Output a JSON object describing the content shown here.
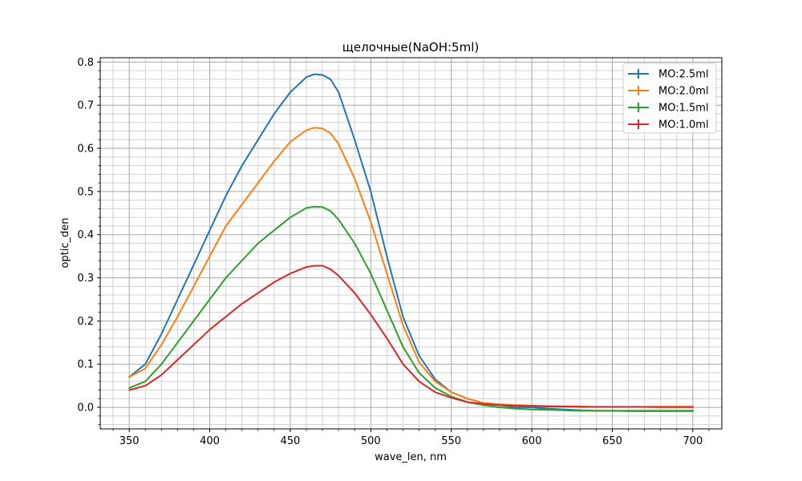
{
  "chart_data": {
    "type": "line",
    "title": "щелочные(NaOH:5ml)",
    "xlabel": "wave_len, nm",
    "ylabel": "optic_den",
    "xlim": [
      332,
      718
    ],
    "ylim": [
      -0.05,
      0.81
    ],
    "x_ticks": [
      350,
      400,
      450,
      500,
      550,
      600,
      650,
      700
    ],
    "x_tick_labels": [
      "350",
      "400",
      "450",
      "500",
      "550",
      "600",
      "650",
      "700"
    ],
    "y_ticks": [
      0.0,
      0.1,
      0.2,
      0.3,
      0.4,
      0.5,
      0.6,
      0.7,
      0.8
    ],
    "y_tick_labels": [
      "0.0",
      "0.1",
      "0.2",
      "0.3",
      "0.4",
      "0.5",
      "0.6",
      "0.7",
      "0.8"
    ],
    "grid": true,
    "minor_grid": true,
    "legend_position": "top-right",
    "x": [
      350,
      360,
      370,
      380,
      390,
      400,
      410,
      420,
      430,
      440,
      450,
      460,
      465,
      470,
      475,
      480,
      490,
      500,
      510,
      520,
      530,
      540,
      550,
      560,
      570,
      580,
      590,
      600,
      610,
      620,
      630,
      640,
      650,
      660,
      670,
      680,
      690,
      700
    ],
    "series": [
      {
        "name": "MO:2.5ml",
        "color": "#1f77b4",
        "values": [
          0.07,
          0.1,
          0.17,
          0.25,
          0.33,
          0.41,
          0.49,
          0.56,
          0.62,
          0.68,
          0.73,
          0.765,
          0.772,
          0.77,
          0.76,
          0.73,
          0.62,
          0.5,
          0.35,
          0.21,
          0.12,
          0.065,
          0.035,
          0.02,
          0.01,
          0.005,
          0.0,
          0.0,
          -0.003,
          -0.005,
          -0.007,
          -0.008,
          -0.008,
          -0.008,
          -0.008,
          -0.008,
          -0.008,
          -0.008
        ]
      },
      {
        "name": "MO:2.0ml",
        "color": "#ff7f0e",
        "values": [
          0.07,
          0.09,
          0.145,
          0.21,
          0.28,
          0.35,
          0.42,
          0.47,
          0.52,
          0.57,
          0.615,
          0.642,
          0.648,
          0.646,
          0.635,
          0.61,
          0.53,
          0.43,
          0.31,
          0.19,
          0.105,
          0.06,
          0.035,
          0.02,
          0.01,
          0.007,
          0.005,
          0.004,
          0.003,
          0.002,
          0.002,
          0.001,
          0.001,
          0.001,
          0.001,
          0.0,
          0.0,
          0.0
        ]
      },
      {
        "name": "MO:1.5ml",
        "color": "#2ca02c",
        "values": [
          0.045,
          0.06,
          0.1,
          0.15,
          0.2,
          0.25,
          0.3,
          0.34,
          0.38,
          0.41,
          0.44,
          0.462,
          0.465,
          0.464,
          0.455,
          0.435,
          0.38,
          0.31,
          0.225,
          0.14,
          0.08,
          0.045,
          0.025,
          0.012,
          0.005,
          0.0,
          -0.003,
          -0.005,
          -0.006,
          -0.007,
          -0.008,
          -0.008,
          -0.008,
          -0.009,
          -0.009,
          -0.009,
          -0.009,
          -0.009
        ]
      },
      {
        "name": "MO:1.0ml",
        "color": "#d62728",
        "values": [
          0.04,
          0.05,
          0.075,
          0.11,
          0.145,
          0.18,
          0.21,
          0.24,
          0.265,
          0.29,
          0.31,
          0.325,
          0.328,
          0.328,
          0.32,
          0.305,
          0.265,
          0.215,
          0.16,
          0.1,
          0.06,
          0.035,
          0.022,
          0.012,
          0.008,
          0.005,
          0.004,
          0.003,
          0.002,
          0.002,
          0.001,
          0.001,
          0.001,
          0.001,
          0.001,
          0.001,
          0.001,
          0.001
        ]
      }
    ]
  }
}
